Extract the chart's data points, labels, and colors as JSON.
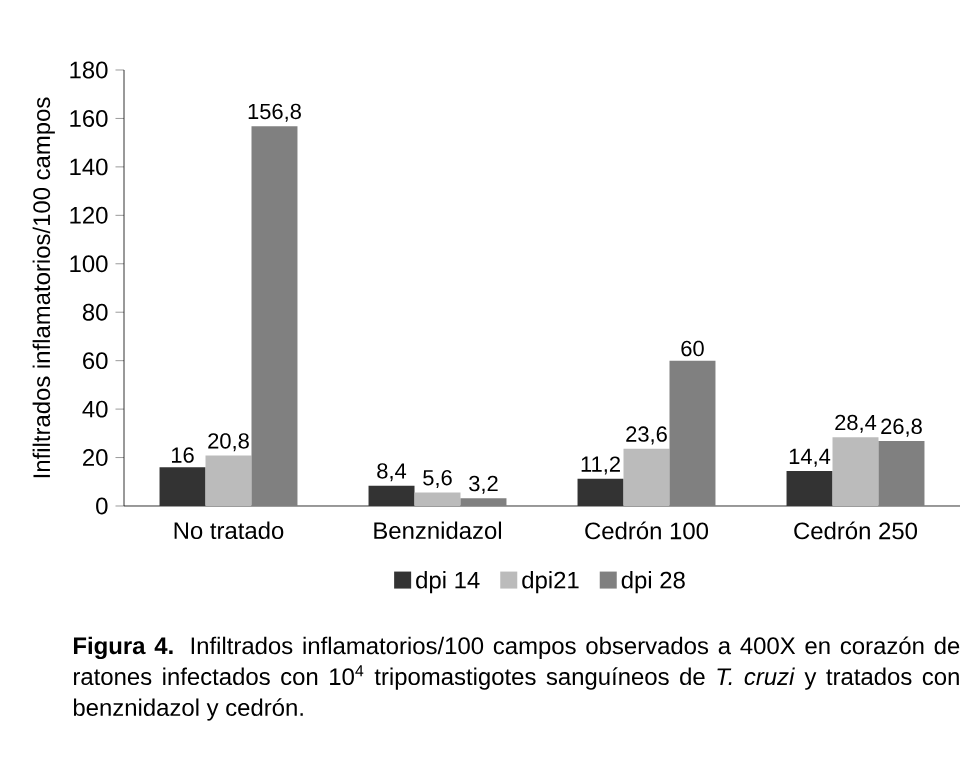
{
  "chart_data": {
    "type": "bar",
    "ylabel": "Infiltrados inflamatorios/100 campos",
    "categories": [
      "No tratado",
      "Benznidazol",
      "Cedrón 100",
      "Cedrón 250"
    ],
    "series": [
      {
        "name": "dpi 14",
        "color": "#333333",
        "values": [
          16,
          8.4,
          11.2,
          14.4
        ],
        "value_labels": [
          "16",
          "8,4",
          "11,2",
          "14,4"
        ]
      },
      {
        "name": "dpi21",
        "color": "#bbbbbb",
        "values": [
          20.8,
          5.6,
          23.6,
          28.4
        ],
        "value_labels": [
          "20,8",
          "5,6",
          "23,6",
          "28,4"
        ]
      },
      {
        "name": "dpi 28",
        "color": "#808080",
        "values": [
          156.8,
          3.2,
          60,
          26.8
        ],
        "value_labels": [
          "156,8",
          "3,2",
          "60",
          "26,8"
        ]
      }
    ],
    "ylim": [
      0,
      180
    ],
    "yticks": [
      0,
      20,
      40,
      60,
      80,
      100,
      120,
      140,
      160,
      180
    ],
    "grid": false,
    "legend": "bottom",
    "annotations": [
      "**Figura 4.** Infiltrados inflamatorios/100 campos observados a 400X en corazón de ratones infectados con 10$^{4}$ tripomastigotes sanguíneos de *T. cruzi* y tratados con benznidazol y cedrón."
    ]
  }
}
